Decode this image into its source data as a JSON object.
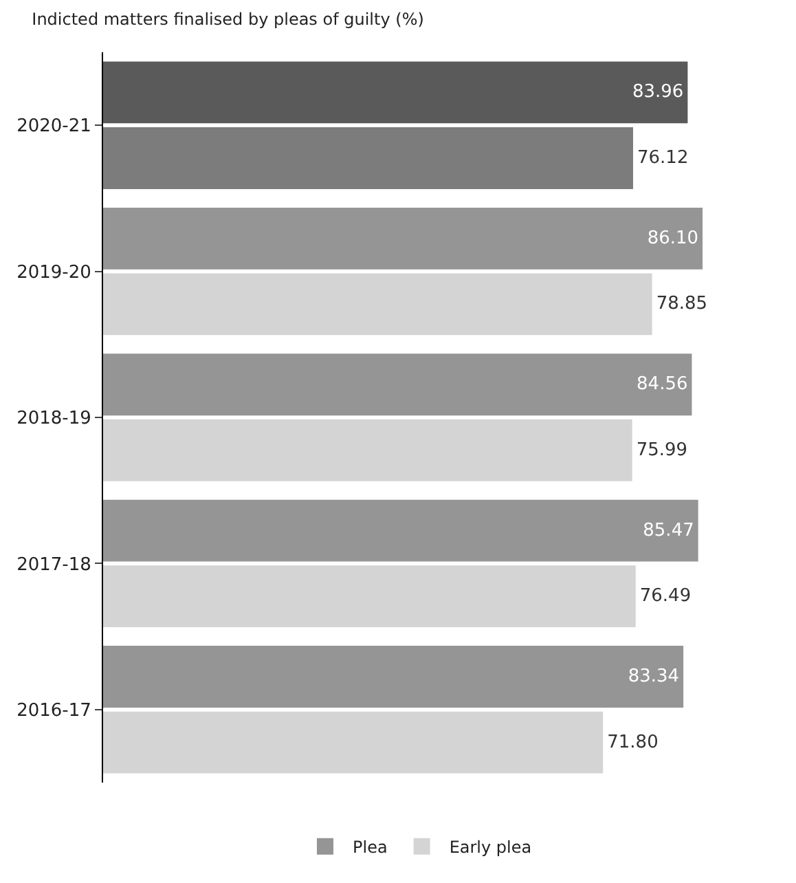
{
  "chart_data": {
    "type": "bar",
    "orientation": "horizontal",
    "title": "Indicted matters finalised by pleas of guilty (%)",
    "categories": [
      "2020-21",
      "2019-20",
      "2018-19",
      "2017-18",
      "2016-17"
    ],
    "series": [
      {
        "name": "Plea",
        "color": "#959595",
        "colors": [
          "#5a5a5a",
          "#959595",
          "#959595",
          "#959595",
          "#959595"
        ],
        "values": [
          83.96,
          86.1,
          84.56,
          85.47,
          83.34
        ],
        "value_labels": [
          "83.96",
          "86.10",
          "84.56",
          "85.47",
          "83.34"
        ]
      },
      {
        "name": "Early plea",
        "color": "#d4d4d4",
        "colors": [
          "#7c7c7c",
          "#d4d4d4",
          "#d4d4d4",
          "#d4d4d4",
          "#d4d4d4"
        ],
        "values": [
          76.12,
          78.85,
          75.99,
          76.49,
          71.8
        ],
        "value_labels": [
          "76.12",
          "78.85",
          "75.99",
          "76.49",
          "71.80"
        ]
      }
    ],
    "data_labels": true,
    "legend": "bottom"
  }
}
